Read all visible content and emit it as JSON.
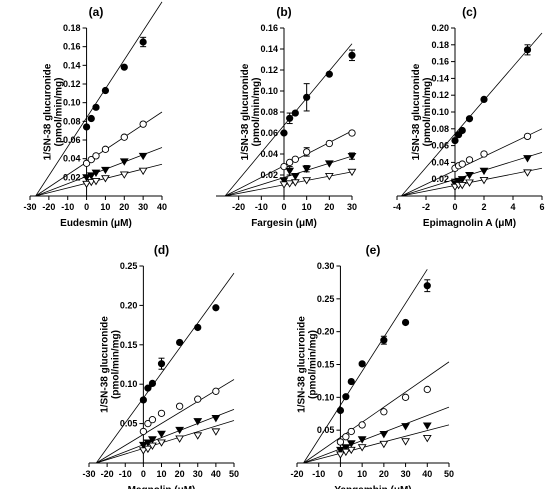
{
  "chart_data": [
    {
      "type": "scatter",
      "panel": "(a)",
      "xlabel": "Eudesmin (μM)",
      "ylabel": [
        "1/SN-38 glucuronide",
        "(pmol/min/mg)"
      ],
      "xlim": [
        -30,
        40
      ],
      "ylim": [
        0,
        0.18
      ],
      "xticks": [
        -30,
        -20,
        -10,
        0,
        10,
        20,
        30,
        40
      ],
      "yticks": [
        0.02,
        0.04,
        0.06,
        0.08,
        0.1,
        0.12,
        0.14,
        0.16,
        0.18
      ],
      "yticklabels": [
        "0.02",
        "0.04",
        "0.06",
        "0.08",
        "0.10",
        "0.12",
        "0.14",
        "0.16",
        "0.18"
      ],
      "intercept_x": -27,
      "series": [
        {
          "marker": "filled-circle",
          "x": [
            0,
            2.5,
            5,
            10,
            20,
            30
          ],
          "y": [
            0.074,
            0.083,
            0.095,
            0.113,
            0.138,
            0.165
          ],
          "err": [
            0,
            0,
            0,
            0,
            0,
            0.005
          ],
          "line_end": [
            40,
            0.208
          ]
        },
        {
          "marker": "open-circle",
          "x": [
            0,
            2.5,
            5,
            10,
            20,
            30
          ],
          "y": [
            0.035,
            0.039,
            0.043,
            0.05,
            0.063,
            0.077
          ],
          "err": [
            0,
            0,
            0,
            0,
            0,
            0
          ],
          "line_end": [
            40,
            0.09
          ]
        },
        {
          "marker": "filled-triangle",
          "x": [
            0,
            2.5,
            5,
            10,
            20,
            30
          ],
          "y": [
            0.02,
            0.022,
            0.025,
            0.028,
            0.037,
            0.043
          ],
          "err": [
            0,
            0,
            0,
            0,
            0,
            0
          ],
          "line_end": [
            40,
            0.052
          ]
        },
        {
          "marker": "open-triangle",
          "x": [
            0,
            2.5,
            5,
            10,
            20,
            30
          ],
          "y": [
            0.013,
            0.015,
            0.016,
            0.019,
            0.023,
            0.027
          ],
          "err": [
            0,
            0,
            0,
            0,
            0,
            0
          ],
          "line_end": [
            40,
            0.034
          ]
        }
      ]
    },
    {
      "type": "scatter",
      "panel": "(b)",
      "xlabel": "Fargesin (μM)",
      "ylabel": [
        "1/SN-38 glucuronide",
        "(pmol/min/mg)"
      ],
      "xlim": [
        -30,
        30
      ],
      "ylim": [
        0,
        0.16
      ],
      "xticks": [
        -20,
        -10,
        0,
        10,
        20,
        30
      ],
      "yticks": [
        0.02,
        0.04,
        0.06,
        0.08,
        0.1,
        0.12,
        0.14,
        0.16
      ],
      "yticklabels": [
        "0.02",
        "0.04",
        "0.06",
        "0.08",
        "0.10",
        "0.12",
        "0.14",
        "0.16"
      ],
      "intercept_x": -26,
      "series": [
        {
          "marker": "filled-circle",
          "x": [
            0,
            2.5,
            5,
            10,
            20,
            30
          ],
          "y": [
            0.06,
            0.074,
            0.079,
            0.094,
            0.116,
            0.134
          ],
          "err": [
            0,
            0.005,
            0,
            0.013,
            0,
            0.005
          ],
          "line_end": [
            30,
            0.145
          ]
        },
        {
          "marker": "open-circle",
          "x": [
            0,
            2.5,
            5,
            10,
            20,
            30
          ],
          "y": [
            0.028,
            0.032,
            0.035,
            0.042,
            0.05,
            0.06
          ],
          "err": [
            0,
            0,
            0,
            0.004,
            0,
            0
          ],
          "line_end": [
            30,
            0.062
          ]
        },
        {
          "marker": "filled-triangle",
          "x": [
            0,
            2.5,
            5,
            10,
            20,
            30
          ],
          "y": [
            0.015,
            0.024,
            0.019,
            0.026,
            0.031,
            0.038
          ],
          "err": [
            0,
            0.004,
            0,
            0.003,
            0,
            0.003
          ],
          "line_end": [
            30,
            0.038
          ]
        },
        {
          "marker": "open-triangle",
          "x": [
            0,
            2.5,
            5,
            10,
            20,
            30
          ],
          "y": [
            0.011,
            0.012,
            0.013,
            0.015,
            0.019,
            0.023
          ],
          "err": [
            0,
            0,
            0,
            0,
            0,
            0
          ],
          "line_end": [
            30,
            0.023
          ]
        }
      ]
    },
    {
      "type": "scatter",
      "panel": "(c)",
      "xlabel": "Epimagnolin A (μM)",
      "ylabel": [
        "1/SN-38 glucuronide",
        "(pmol/min/mg)"
      ],
      "xlim": [
        -4,
        6
      ],
      "ylim": [
        0,
        0.2
      ],
      "xticks": [
        -4,
        -2,
        0,
        2,
        4,
        6
      ],
      "yticks": [
        0.02,
        0.04,
        0.06,
        0.08,
        0.1,
        0.12,
        0.14,
        0.16,
        0.18,
        0.2
      ],
      "yticklabels": [
        "0.02",
        "0.04",
        "0.06",
        "0.08",
        "0.10",
        "0.12",
        "0.14",
        "0.16",
        "0.18",
        "0.20"
      ],
      "intercept_x": -3.7,
      "series": [
        {
          "marker": "filled-circle",
          "x": [
            0,
            0.25,
            0.5,
            1,
            2,
            5
          ],
          "y": [
            0.066,
            0.073,
            0.078,
            0.092,
            0.115,
            0.174
          ],
          "err": [
            0,
            0,
            0,
            0,
            0,
            0.006
          ],
          "line_end": [
            6,
            0.194
          ]
        },
        {
          "marker": "open-circle",
          "x": [
            0,
            0.25,
            0.5,
            1,
            2,
            5
          ],
          "y": [
            0.033,
            0.036,
            0.038,
            0.043,
            0.05,
            0.071
          ],
          "err": [
            0,
            0,
            0,
            0,
            0,
            0
          ],
          "line_end": [
            6,
            0.08
          ]
        },
        {
          "marker": "filled-triangle",
          "x": [
            0,
            0.25,
            0.5,
            1,
            2,
            5
          ],
          "y": [
            0.015,
            0.018,
            0.02,
            0.025,
            0.03,
            0.045
          ],
          "err": [
            0,
            0,
            0,
            0,
            0,
            0
          ],
          "line_end": [
            6,
            0.052
          ]
        },
        {
          "marker": "open-triangle",
          "x": [
            0,
            0.25,
            0.5,
            1,
            2,
            5
          ],
          "y": [
            0.011,
            0.013,
            0.013,
            0.016,
            0.019,
            0.028
          ],
          "err": [
            0,
            0,
            0,
            0,
            0,
            0
          ],
          "line_end": [
            6,
            0.033
          ]
        }
      ]
    },
    {
      "type": "scatter",
      "panel": "(d)",
      "xlabel": "Magnolin (μM)",
      "ylabel": [
        "1/SN-38 glucuronide",
        "(pmol/min/mg)"
      ],
      "xlim": [
        -30,
        50
      ],
      "ylim": [
        0,
        0.25
      ],
      "xticks": [
        -30,
        -20,
        -10,
        0,
        10,
        20,
        30,
        40,
        50
      ],
      "yticks": [
        0.05,
        0.1,
        0.15,
        0.2,
        0.25
      ],
      "yticklabels": [
        "0.05",
        "0.10",
        "0.15",
        "0.20",
        "0.25"
      ],
      "intercept_x": -26,
      "series": [
        {
          "marker": "filled-circle",
          "x": [
            0,
            2.5,
            5,
            10,
            20,
            30,
            40
          ],
          "y": [
            0.08,
            0.095,
            0.101,
            0.126,
            0.153,
            0.172,
            0.197
          ],
          "err": [
            0,
            0,
            0,
            0.007,
            0,
            0,
            0
          ],
          "line_end": [
            50,
            0.241
          ]
        },
        {
          "marker": "open-circle",
          "x": [
            0,
            2.5,
            5,
            10,
            20,
            30,
            40
          ],
          "y": [
            0.04,
            0.05,
            0.055,
            0.063,
            0.072,
            0.081,
            0.091
          ],
          "err": [
            0,
            0,
            0,
            0,
            0,
            0,
            0
          ],
          "line_end": [
            50,
            0.106
          ]
        },
        {
          "marker": "filled-triangle",
          "x": [
            0,
            2.5,
            5,
            10,
            20,
            30,
            40
          ],
          "y": [
            0.023,
            0.026,
            0.03,
            0.037,
            0.042,
            0.053,
            0.057
          ],
          "err": [
            0,
            0,
            0,
            0,
            0,
            0,
            0
          ],
          "line_end": [
            50,
            0.068
          ]
        },
        {
          "marker": "open-triangle",
          "x": [
            0,
            2.5,
            5,
            10,
            20,
            30,
            40
          ],
          "y": [
            0.016,
            0.018,
            0.022,
            0.026,
            0.031,
            0.035,
            0.04
          ],
          "err": [
            0,
            0,
            0,
            0,
            0,
            0,
            0
          ],
          "line_end": [
            50,
            0.054
          ]
        }
      ]
    },
    {
      "type": "scatter",
      "panel": "(e)",
      "xlabel": "Yangambin (μM)",
      "ylabel": [
        "1/SN-38 glucuronide",
        "(pmol/min/mg)"
      ],
      "xlim": [
        -20,
        50
      ],
      "ylim": [
        0,
        0.3
      ],
      "xticks": [
        -20,
        -10,
        0,
        10,
        20,
        30,
        40,
        50
      ],
      "yticks": [
        0.05,
        0.1,
        0.15,
        0.2,
        0.25,
        0.3
      ],
      "yticklabels": [
        "0.05",
        "0.10",
        "0.15",
        "0.20",
        "0.25",
        "0.30"
      ],
      "intercept_x": -17,
      "series": [
        {
          "marker": "filled-circle",
          "x": [
            0,
            2.5,
            5,
            10,
            20,
            30,
            40
          ],
          "y": [
            0.08,
            0.101,
            0.124,
            0.151,
            0.187,
            0.214,
            0.27
          ],
          "err": [
            0,
            0,
            0,
            0,
            0.006,
            0,
            0.009
          ],
          "line_end": [
            40,
            0.295
          ]
        },
        {
          "marker": "open-circle",
          "x": [
            0,
            2.5,
            5,
            10,
            20,
            30,
            40
          ],
          "y": [
            0.032,
            0.04,
            0.048,
            0.058,
            0.078,
            0.1,
            0.112
          ],
          "err": [
            0,
            0,
            0,
            0,
            0,
            0,
            0
          ],
          "line_end": [
            50,
            0.154
          ]
        },
        {
          "marker": "filled-triangle",
          "x": [
            0,
            2.5,
            5,
            10,
            20,
            30,
            40
          ],
          "y": [
            0.02,
            0.024,
            0.03,
            0.036,
            0.044,
            0.056,
            0.057
          ],
          "err": [
            0,
            0,
            0,
            0,
            0,
            0,
            0
          ],
          "line_end": [
            50,
            0.085
          ]
        },
        {
          "marker": "open-triangle",
          "x": [
            0,
            2.5,
            5,
            10,
            20,
            30,
            40
          ],
          "y": [
            0.013,
            0.017,
            0.02,
            0.024,
            0.029,
            0.033,
            0.038
          ],
          "err": [
            0,
            0,
            0,
            0,
            0,
            0,
            0
          ],
          "line_end": [
            50,
            0.058
          ]
        }
      ]
    }
  ]
}
